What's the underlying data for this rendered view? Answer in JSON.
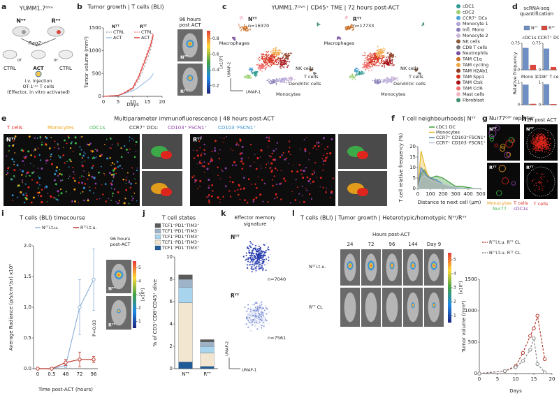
{
  "panel_letters": [
    "a",
    "b",
    "c",
    "d",
    "e",
    "f",
    "g",
    "h",
    "i",
    "j",
    "k",
    "l"
  ],
  "a": {
    "title": "YUMM1.7ᴼⱽᴬ",
    "left": "Nᵀᵀ",
    "right": "Rᵀᵀ",
    "host": "Rag2⁻ᐟ⁻",
    "or": [
      "or",
      "or"
    ],
    "groups": [
      "CTRL",
      "ACT",
      "CTRL"
    ],
    "injection": [
      "i.v. injection",
      "OT-1ᴸᵘᶜ T cells",
      "(Effector, in vitro activated)"
    ]
  },
  "b_image": {
    "title": [
      "96 hours",
      "post ACT"
    ],
    "rows": [
      "Nᵀᵀ",
      "Rᵀᵀ"
    ],
    "colorbar": {
      "label": "[x10⁶]",
      "lim": [
        0.1,
        0.9
      ],
      "ticks": [
        0.2,
        0.4,
        0.6,
        0.8
      ]
    }
  },
  "c": {
    "title": "YUMM1.7ᴼⱽᴬ | CD45⁺ TME | 72 hours post-ACT",
    "maps": [
      {
        "name": "Nᵀᵀ",
        "n": "n=16370",
        "labels": [
          "Macrophages",
          "NK cells",
          "T cells",
          "Dendritic cells",
          "Monocytes"
        ]
      },
      {
        "name": "Rᵀᵀ",
        "n": "n=17733",
        "labels": [
          "Macrophages",
          "NK cells",
          "T cells",
          "Dendritic cells",
          "Monocytes"
        ]
      }
    ],
    "axes": [
      "UMAP-1",
      "UMAP-2"
    ],
    "legend": [
      {
        "name": "cDC1",
        "color": "#2e9a8f"
      },
      {
        "name": "cDC2",
        "color": "#9bcf6e"
      },
      {
        "name": "CCR7⁺ DCs",
        "color": "#4fa3d8"
      },
      {
        "name": "Monocyte 1",
        "color": "#b3a4d6"
      },
      {
        "name": "Infl. Mono",
        "color": "#8b7fb9"
      },
      {
        "name": "Monocyte 2",
        "color": "#c9b3d6"
      },
      {
        "name": "NK cells",
        "color": "#8a5a3c"
      },
      {
        "name": "CD8 T cells",
        "color": "#777777"
      },
      {
        "name": "Neutrophils",
        "color": "#7b4fa0"
      },
      {
        "name": "TAM C1q",
        "color": "#c8702a"
      },
      {
        "name": "TAM cycling",
        "color": "#f1a340"
      },
      {
        "name": "TAM H2Ab1",
        "color": "#8c3b22"
      },
      {
        "name": "TAM Spp1",
        "color": "#d7301f"
      },
      {
        "name": "TAM Ctsk",
        "color": "#a50f15"
      },
      {
        "name": "TAM Ccl6",
        "color": "#ef6f6c"
      },
      {
        "name": "Mast cells",
        "color": "#f4b6c2"
      },
      {
        "name": "Fibroblast",
        "color": "#3f8f6f"
      }
    ]
  },
  "d": {
    "title": [
      "scRNA-seq",
      "quantification"
    ],
    "y_label": "Relative frequency"
  },
  "e": {
    "title": "Multiparameter immunofluorescence | 48 hours post-ACT",
    "panels": [
      "Nᵀᵀ",
      "Rᵀᵀ"
    ],
    "legend": [
      {
        "name": "T cells",
        "color": "#e0261c"
      },
      {
        "name": "Monocytes",
        "color": "#f2a516"
      },
      {
        "name": "cDC1s",
        "color": "#3cb54a"
      },
      {
        "name": "CCR7⁺ DCs:",
        "color": "#222222"
      },
      {
        "name": "CD103⁺ FSCN1⁺",
        "color": "#8b3fa8"
      },
      {
        "name": "CD103⁻FSCN1⁺",
        "color": "#2f8fcf"
      }
    ]
  },
  "g": {
    "title": "Nur77ᴳᶠᴾ reporter",
    "panels": [
      "Nᵀᵀ",
      "Rᵀᵀ"
    ],
    "legend": [
      {
        "name": "Monocytes",
        "color": "#e89a18"
      },
      {
        "name": "T cells",
        "color": "#e0261c"
      },
      {
        "name": "Nur77",
        "color": "#3cb54a"
      },
      {
        "name": "cDC1s",
        "color": "#8b3fa8"
      }
    ]
  },
  "h": {
    "title": "72h post ACT",
    "panels": [
      "Nᵀᵀ",
      "Rᵀᵀ"
    ],
    "legend": {
      "name": "T cells",
      "color": "#e0261c"
    }
  },
  "i_image": {
    "title": [
      "96 hours",
      "post-ACT"
    ],
    "rows": [
      "Nᵀᵀ",
      "Rᵀᵀ"
    ],
    "colorbar": {
      "label": "[x10⁶]",
      "lim": [
        0.5,
        5.5
      ],
      "ticks": [
        1,
        2,
        3,
        4,
        5
      ]
    }
  },
  "k": {
    "title": [
      "Effector memory",
      "signature"
    ],
    "maps": [
      {
        "name": "Nᵀᵀ",
        "n": "n=7040"
      },
      {
        "name": "Rᵀᵀ",
        "n": "n=7561"
      }
    ],
    "axes": [
      "UMAP-1",
      "UMAP-2"
    ]
  },
  "l_image": {
    "title": "T cells (BLI) | Tumor growth | Heterotypic/homotypic Nᵀᵀ/Rᵀᵀ",
    "subtitle": "Hours post-ACT",
    "columns": [
      "24",
      "72",
      "96",
      "144",
      "Day 9"
    ],
    "rows": [
      "Nᵀᵀi.t.u.",
      "Rᵀᵀ CL"
    ],
    "colorbar": {
      "label": "[x10⁵]",
      "lim": [
        0.5,
        5.5
      ],
      "ticks": [
        1,
        2,
        3,
        4,
        5
      ]
    }
  },
  "chart_data": [
    {
      "type": "line",
      "title": "Tumor growth | T cells (BLI)",
      "x_label": "Days",
      "y_label": "Tumor volume (mm³)",
      "xlim": [
        0,
        20
      ],
      "xticks": [
        0,
        5,
        10,
        15,
        20
      ],
      "ylim": [
        0,
        1500
      ],
      "yticks": [
        0,
        500,
        1000,
        1500
      ],
      "legend_headers": [
        "Nᵀᵀ",
        "Rᵀᵀ"
      ],
      "x": [
        0,
        5,
        7,
        10,
        12,
        14,
        16,
        17
      ],
      "series": [
        {
          "name": "CTRL",
          "color": "#b0b0b0",
          "dash": true,
          "values": [
            0,
            20,
            60,
            150,
            350,
            650,
            1000,
            1300
          ]
        },
        {
          "name": "ACT",
          "color": "#9fc3e6",
          "values": [
            0,
            20,
            60,
            120,
            200,
            300,
            400,
            500
          ]
        },
        {
          "name": "CTRL",
          "color": "#f08c8c",
          "dash": true,
          "values": [
            0,
            20,
            80,
            200,
            450,
            800,
            1150,
            1400
          ]
        },
        {
          "name": "ACT",
          "color": "#e0403a",
          "values": [
            0,
            20,
            70,
            180,
            420,
            750,
            1100,
            1350
          ]
        }
      ]
    },
    {
      "type": "bar",
      "title": "cDC1s",
      "categories": [
        null
      ],
      "ylim": [
        0,
        0.75
      ],
      "yticks": [
        0,
        0.75
      ],
      "series": [
        {
          "name": "Nᵀᵀ",
          "color": "#6f8fc4",
          "values": [
            0.62
          ]
        },
        {
          "name": "Rᵀᵀ",
          "color": "#d9473d",
          "values": [
            0.14
          ]
        }
      ]
    },
    {
      "type": "bar",
      "title": "CCR7⁺ DCs",
      "categories": [
        null
      ],
      "ylim": [
        0,
        0.75
      ],
      "yticks": [
        0,
        0.75
      ],
      "series": [
        {
          "color": "#6f8fc4",
          "values": [
            0.6
          ]
        },
        {
          "color": "#d9473d",
          "values": [
            0.08
          ]
        }
      ]
    },
    {
      "type": "bar",
      "title": "Mono 1",
      "categories": [
        null
      ],
      "ylim": [
        0,
        1
      ],
      "yticks": [
        0,
        1
      ],
      "series": [
        {
          "color": "#6f8fc4",
          "values": [
            0.9
          ]
        },
        {
          "color": "#d9473d",
          "values": [
            0.04
          ]
        }
      ]
    },
    {
      "type": "bar",
      "title": "CD8⁺ T cells",
      "categories": [
        null
      ],
      "ylim": [
        0,
        1
      ],
      "yticks": [
        0,
        1
      ],
      "series": [
        {
          "color": "#6f8fc4",
          "values": [
            0.92
          ]
        },
        {
          "color": "#d9473d",
          "values": [
            0.03
          ]
        }
      ]
    },
    {
      "type": "line",
      "title": "T cell neighbourhoods| Nᵀᵀ",
      "x_label": "Distance to next cell (μm)",
      "y_label": "T cell relative frequency (%)",
      "xlim": [
        0,
        500
      ],
      "xticks": [
        0,
        100,
        200,
        300,
        400,
        500
      ],
      "ylim": [
        0,
        20
      ],
      "yticks": [
        0,
        5,
        10,
        15,
        20
      ],
      "x": [
        0,
        25,
        50,
        75,
        100,
        150,
        200,
        250,
        300,
        350,
        400,
        450,
        500
      ],
      "series": [
        {
          "name": "cDC1 DC",
          "color": "#3a9a3a",
          "fill": true,
          "values": [
            0,
            7,
            9,
            7,
            5,
            6,
            5,
            3,
            1,
            1,
            0.5,
            0,
            0
          ]
        },
        {
          "name": "Monocytes",
          "color": "#e8b830",
          "fill": true,
          "values": [
            0,
            18,
            12,
            7,
            5,
            3,
            2,
            1,
            0.5,
            0,
            0,
            0,
            0
          ]
        },
        {
          "name": "CCR7⁺ CD103⁺FSCN1⁺",
          "color": "#4a7fc0",
          "fill": true,
          "values": [
            0,
            10,
            8,
            6,
            5,
            4,
            2,
            1,
            0.5,
            0,
            0,
            0,
            0
          ]
        },
        {
          "name": "CCR7⁺ CD103⁻FSCN1⁺",
          "color": "#b8c4d0",
          "fill": true,
          "values": [
            0,
            5,
            6,
            5,
            4,
            3,
            2,
            1,
            0.5,
            0,
            0,
            0,
            0
          ]
        }
      ]
    },
    {
      "type": "line",
      "title": "T cells (BLI) timecourse",
      "x_label": "Time post-ACT (hours)",
      "y_label": "Average Radiance (p/s/cm²/sr) x10⁵",
      "categories": [
        "0",
        "0.5",
        "48",
        "72",
        "96"
      ],
      "ylim": [
        0,
        2
      ],
      "yticks": [
        {
          "value": 0,
          "label": "0.0"
        },
        {
          "value": 0.5,
          "label": "0.5"
        },
        {
          "value": 1,
          "label": "1.0"
        },
        {
          "value": 1.5,
          "label": "1.5"
        },
        {
          "value": 2,
          "label": "2.0"
        }
      ],
      "annotation": "P=0.03",
      "series": [
        {
          "name": "Nᵀᵀi.t.u.",
          "color": "#8fb4d9",
          "marker": true,
          "values": [
            0,
            0,
            0.05,
            1.0,
            1.45
          ],
          "errors": [
            0,
            0,
            0.03,
            0.45,
            0.5
          ]
        },
        {
          "name": "Rᵀᵀi.t.u.",
          "color": "#c0392b",
          "marker": true,
          "values": [
            0,
            0,
            0.1,
            0.15,
            0.15
          ],
          "errors": [
            0,
            0,
            0.05,
            0.12,
            0.05
          ]
        }
      ]
    },
    {
      "type": "stacked_bar",
      "title": "T cell states",
      "y_label": "% of CD3⁺CD8⁺CD45⁺ alive",
      "categories": [
        "Nᵀᵀ",
        "Rᵀᵀ"
      ],
      "ylim": [
        0,
        10
      ],
      "yticks": [
        0,
        2,
        4,
        6,
        8,
        10
      ],
      "series": [
        {
          "name": "TCF1⁻PD1⁻TIM3⁻",
          "color": "#5a5a5a",
          "values": [
            0.4,
            0.2
          ]
        },
        {
          "name": "TCF1⁺PD1⁺TIM3⁻",
          "color": "#9fb3c8",
          "values": [
            0.7,
            0.4
          ]
        },
        {
          "name": "TCF1⁻PD1⁺TIM3⁻",
          "color": "#a8d4ee",
          "values": [
            1.4,
            0.6
          ]
        },
        {
          "name": "TCF1⁻PD1⁺TIM3⁺",
          "color": "#f2e6d0",
          "values": [
            5.3,
            1.2
          ]
        },
        {
          "name": "TCF1⁻PD1⁻TIM3⁺",
          "color": "#1f5a99",
          "values": [
            0.6,
            0.2
          ]
        }
      ]
    },
    {
      "type": "line",
      "x_label": "Days",
      "y_label": "Tumor volume (mm³)",
      "xlim": [
        0,
        20
      ],
      "xticks": [
        0,
        5,
        10,
        15,
        20
      ],
      "ylim": [
        0,
        1500
      ],
      "yticks": [
        0,
        500,
        1000,
        1500
      ],
      "x": [
        0,
        7,
        10,
        12,
        14,
        15,
        16,
        18
      ],
      "series": [
        {
          "name": "Rᵀᵀi.t.u. Rᵀᵀ CL",
          "color": "#b03a2e",
          "dash": true,
          "marker": true,
          "values": [
            0,
            40,
            120,
            330,
            600,
            720,
            920,
            230
          ]
        },
        {
          "name": "Nᵀᵀi.t.u. Rᵀᵀ CL",
          "color": "#888888",
          "dash": true,
          "marker": true,
          "values": [
            0,
            40,
            100,
            200,
            380,
            560,
            150,
            20
          ]
        }
      ]
    }
  ]
}
